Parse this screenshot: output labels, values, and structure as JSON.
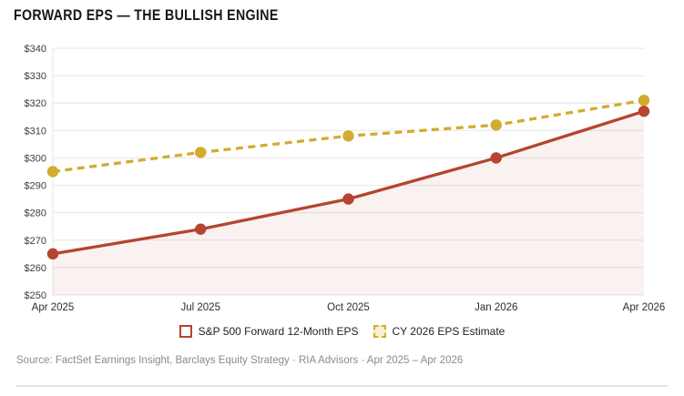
{
  "title": "FORWARD EPS — THE BULLISH ENGINE",
  "source_line": "Source: FactSet Earnings Insight, Barclays Equity Strategy · RIA Advisors · Apr 2025 – Apr 2026",
  "colors": {
    "title": "#15161e",
    "gridline": "#e9e9e9",
    "axis_label": "#3d3d3d",
    "source_text": "#8b8b8b",
    "divider": "#e3e3e3",
    "background": "#ffffff"
  },
  "chart_data": {
    "type": "line",
    "title": "FORWARD EPS — THE BULLISH ENGINE",
    "categories": [
      "Apr 2025",
      "Jul 2025",
      "Oct 2025",
      "Jan 2026",
      "Apr 2026"
    ],
    "series": [
      {
        "name": "S&P 500 Forward 12-Month EPS",
        "values": [
          265,
          274,
          285,
          300,
          317
        ],
        "color": "#b54530",
        "line_style": "solid",
        "marker": "circle",
        "area_fill": true,
        "legend_marker_fill": "#ffffff",
        "legend_marker_border": "solid"
      },
      {
        "name": "CY 2026 EPS Estimate",
        "values": [
          295,
          302,
          308,
          312,
          321
        ],
        "color": "#d3ab2f",
        "line_style": "dashed",
        "marker": "circle",
        "area_fill": false,
        "legend_marker_fill": "#f8efd2",
        "legend_marker_border": "dashed"
      }
    ],
    "xlabel": "",
    "ylabel": "",
    "ylim": [
      250,
      340
    ],
    "y_tick_step": 10,
    "y_tick_prefix": "$",
    "grid": true,
    "legend_position": "bottom"
  }
}
